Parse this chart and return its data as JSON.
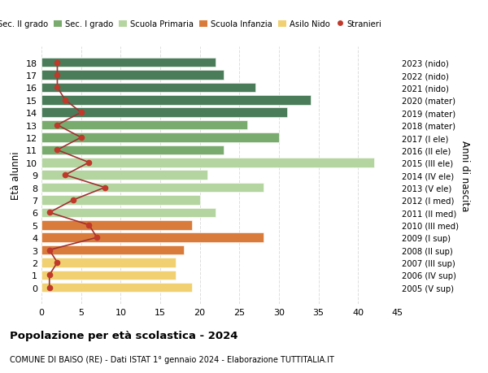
{
  "ages": [
    18,
    17,
    16,
    15,
    14,
    13,
    12,
    11,
    10,
    9,
    8,
    7,
    6,
    5,
    4,
    3,
    2,
    1,
    0
  ],
  "years": [
    "2005 (V sup)",
    "2006 (IV sup)",
    "2007 (III sup)",
    "2008 (II sup)",
    "2009 (I sup)",
    "2010 (III med)",
    "2011 (II med)",
    "2012 (I med)",
    "2013 (V ele)",
    "2014 (IV ele)",
    "2015 (III ele)",
    "2016 (II ele)",
    "2017 (I ele)",
    "2018 (mater)",
    "2019 (mater)",
    "2020 (mater)",
    "2021 (nido)",
    "2022 (nido)",
    "2023 (nido)"
  ],
  "bar_values": [
    22,
    23,
    27,
    34,
    31,
    26,
    30,
    23,
    42,
    21,
    28,
    20,
    22,
    19,
    28,
    18,
    17,
    17,
    19
  ],
  "stranieri_values": [
    2,
    2,
    2,
    3,
    5,
    2,
    5,
    2,
    6,
    3,
    8,
    4,
    1,
    6,
    7,
    1,
    2,
    1,
    1
  ],
  "bar_colors": [
    "#4a7c59",
    "#4a7c59",
    "#4a7c59",
    "#4a7c59",
    "#4a7c59",
    "#7aab6e",
    "#7aab6e",
    "#7aab6e",
    "#b5d5a0",
    "#b5d5a0",
    "#b5d5a0",
    "#b5d5a0",
    "#b5d5a0",
    "#d97b3a",
    "#d97b3a",
    "#d97b3a",
    "#f0d070",
    "#f0d070",
    "#f0d070"
  ],
  "legend_labels": [
    "Sec. II grado",
    "Sec. I grado",
    "Scuola Primaria",
    "Scuola Infanzia",
    "Asilo Nido",
    "Stranieri"
  ],
  "legend_colors": [
    "#4a7c59",
    "#7aab6e",
    "#b5d5a0",
    "#d97b3a",
    "#f0d070",
    "#c0392b"
  ],
  "title": "Popolazione per età scolastica - 2024",
  "subtitle": "COMUNE DI BAISO (RE) - Dati ISTAT 1° gennaio 2024 - Elaborazione TUTTITALIA.IT",
  "ylabel_left": "Età alunni",
  "ylabel_right": "Anni di nascita",
  "xlim": [
    0,
    45
  ],
  "xticks": [
    0,
    5,
    10,
    15,
    20,
    25,
    30,
    35,
    40,
    45
  ],
  "stranieri_color": "#c0392b",
  "line_color": "#a03030",
  "background_color": "#ffffff",
  "grid_color": "#dddddd"
}
